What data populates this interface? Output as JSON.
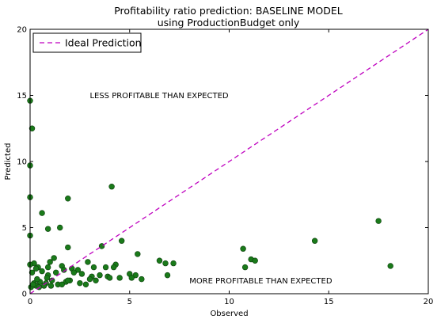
{
  "chart_data": {
    "type": "scatter",
    "title": "Profitability ratio prediction: BASELINE MODEL",
    "subtitle": "using ProductionBudget only",
    "xlabel": "Observed",
    "ylabel": "Predicted",
    "xlim": [
      0,
      20
    ],
    "ylim": [
      0,
      20
    ],
    "xticks": [
      "0",
      "5",
      "10",
      "15",
      "20"
    ],
    "yticks": [
      "0",
      "5",
      "10",
      "15",
      "20"
    ],
    "grid": false,
    "legend_position": "top-left",
    "colors": {
      "points": "#1a7a1a",
      "points_edge": "#0b3d0b",
      "ideal_line": "#bf00bf"
    },
    "annotations": [
      {
        "id": "less",
        "text": "LESS PROFITABLE THAN EXPECTED",
        "x": 3.0,
        "y": 15.0
      },
      {
        "id": "more",
        "text": "MORE PROFITABLE THAN EXPECTED",
        "x": 8.0,
        "y": 1.0
      }
    ],
    "series": [
      {
        "name": "Ideal Prediction",
        "kind": "line",
        "style": "dashed",
        "x": [
          0,
          20
        ],
        "y": [
          0,
          20
        ]
      },
      {
        "kind": "points",
        "x": [
          0.0,
          0.1,
          0.0,
          0.0,
          0.0,
          0.6,
          0.9,
          1.5,
          1.9,
          4.1,
          1.9,
          3.6,
          4.6,
          5.4,
          6.5,
          6.8,
          7.2,
          6.9,
          5.3,
          4.3,
          4.2,
          3.8,
          3.2,
          2.9,
          2.4,
          2.1,
          1.6,
          1.2,
          1.0,
          0.9,
          0.4,
          0.2,
          0.0,
          0.1,
          0.3,
          0.6,
          0.9,
          1.3,
          1.7,
          2.2,
          2.6,
          3.1,
          3.5,
          3.9,
          4.5,
          5.0,
          5.6,
          5.1,
          4.0,
          3.0,
          2.0,
          1.1,
          0.5,
          0.2,
          0.8,
          1.4,
          2.5,
          3.3,
          1.8,
          0.7,
          0.3,
          0.05,
          0.15,
          0.45,
          1.05,
          1.6,
          2.8,
          0.35,
          0.85,
          1.9,
          10.7,
          10.8,
          11.1,
          11.3,
          14.3,
          17.5,
          18.1
        ],
        "y": [
          14.6,
          12.5,
          9.7,
          7.3,
          4.4,
          6.1,
          4.9,
          5.0,
          7.2,
          8.1,
          3.5,
          3.6,
          4.0,
          3.0,
          2.5,
          2.3,
          2.3,
          1.4,
          1.4,
          2.2,
          2.0,
          2.0,
          2.0,
          2.4,
          1.8,
          1.9,
          2.1,
          2.7,
          2.4,
          2.0,
          2.0,
          2.3,
          2.2,
          1.6,
          1.9,
          1.7,
          1.4,
          1.6,
          1.8,
          1.6,
          1.5,
          1.3,
          1.4,
          1.3,
          1.2,
          1.5,
          1.1,
          1.2,
          1.2,
          1.1,
          1.0,
          1.0,
          0.9,
          0.8,
          0.8,
          0.7,
          0.8,
          1.0,
          0.9,
          0.6,
          0.6,
          0.5,
          0.7,
          0.5,
          0.6,
          0.7,
          0.7,
          1.1,
          1.2,
          1.0,
          3.4,
          2.0,
          2.6,
          2.5,
          4.0,
          5.5,
          2.1
        ]
      }
    ]
  }
}
